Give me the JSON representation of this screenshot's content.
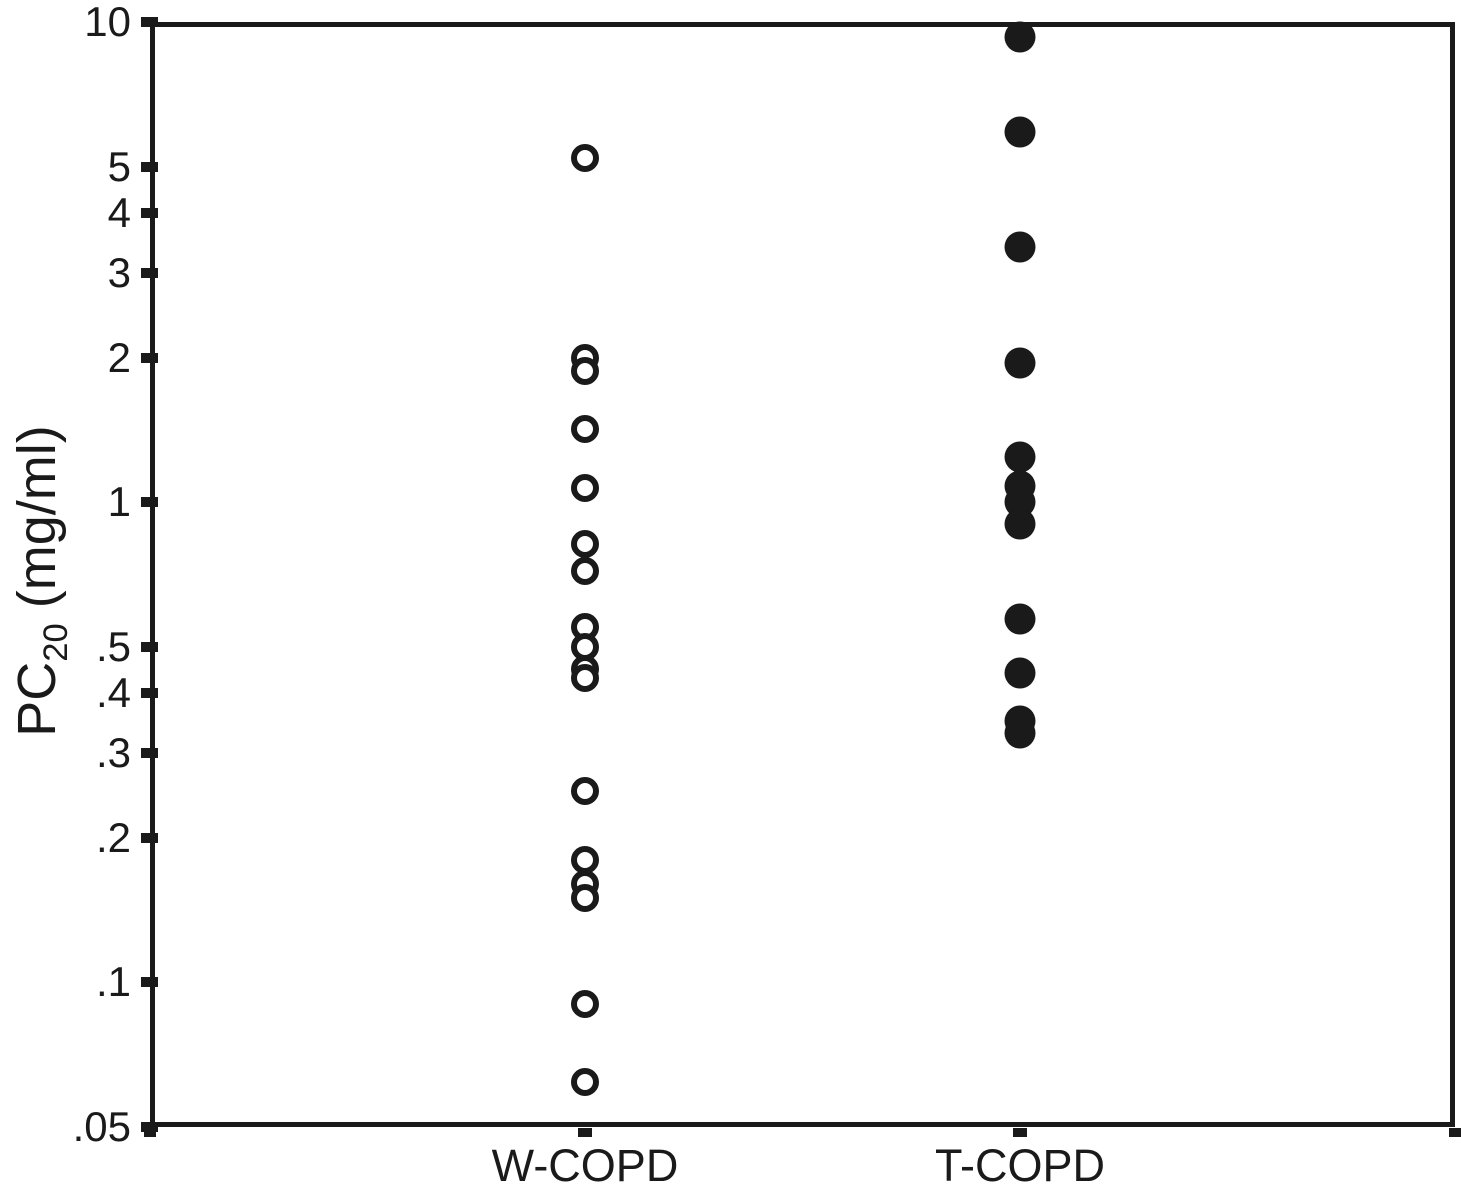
{
  "chart_data": {
    "type": "scatter",
    "subtype": "categorical-dot-plot",
    "title": "",
    "xlabel": "",
    "ylabel": "PC20 (mg/ml)",
    "ylabel_parts": {
      "pre": "PC",
      "sub": "20",
      "post": " (mg/ml)"
    },
    "yscale": "log",
    "ylim": [
      0.05,
      10
    ],
    "grid": false,
    "legend": "none",
    "frame": true,
    "categories": [
      "W-COPD",
      "T-COPD"
    ],
    "yticks": [
      {
        "label": "10",
        "value": 10
      },
      {
        "label": "5",
        "value": 5
      },
      {
        "label": "4",
        "value": 4
      },
      {
        "label": "3",
        "value": 3
      },
      {
        "label": "2",
        "value": 2
      },
      {
        "label": "1",
        "value": 1
      },
      {
        "label": ".5",
        "value": 0.5
      },
      {
        "label": ".4",
        "value": 0.4
      },
      {
        "label": ".3",
        "value": 0.3
      },
      {
        "label": ".2",
        "value": 0.2
      },
      {
        "label": ".1",
        "value": 0.1
      },
      {
        "label": ".05",
        "value": 0.05
      }
    ],
    "series": [
      {
        "name": "W-COPD",
        "marker": "open-circle",
        "values": [
          5.2,
          2.0,
          1.88,
          1.42,
          1.07,
          0.82,
          0.72,
          0.55,
          0.5,
          0.45,
          0.43,
          0.25,
          0.18,
          0.16,
          0.15,
          0.09,
          0.062
        ]
      },
      {
        "name": "T-COPD",
        "marker": "filled-circle",
        "values": [
          9.3,
          5.9,
          3.4,
          1.95,
          1.24,
          1.08,
          1.0,
          0.9,
          0.57,
          0.44,
          0.35,
          0.33
        ]
      }
    ],
    "colors": {
      "ink": "#1a1a1a",
      "background": "#ffffff"
    }
  }
}
